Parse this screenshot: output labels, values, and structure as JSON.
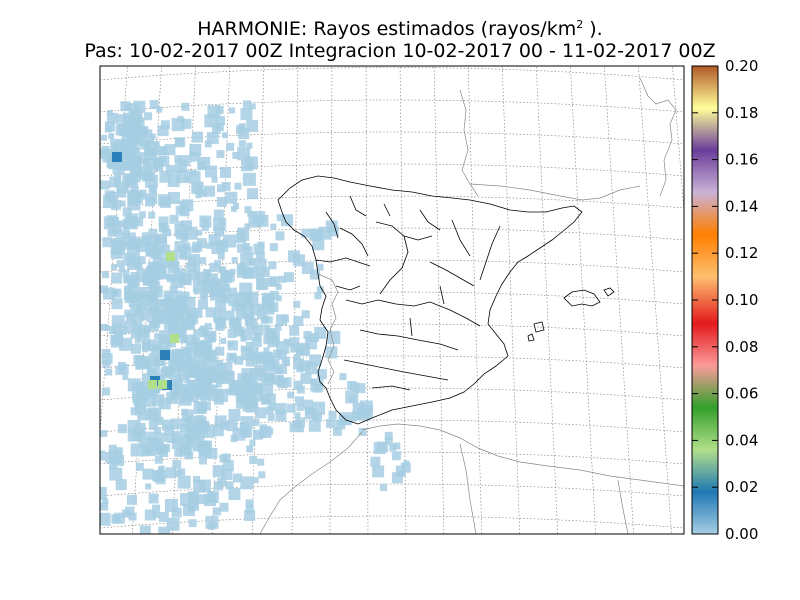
{
  "title": {
    "line1_prefix": "HARMONIE: Rayos estimados  (rayos/km",
    "line1_sup": "2",
    "line1_suffix": " ).",
    "line2": "Pas: 10-02-2017 00Z Integracion 10-02-2017 00 - 11-02-2017 00Z"
  },
  "colorbar": {
    "ticks": [
      "0.00",
      "0.02",
      "0.04",
      "0.06",
      "0.08",
      "0.10",
      "0.12",
      "0.14",
      "0.16",
      "0.18",
      "0.20"
    ],
    "colors": [
      "#a6cee3",
      "#1f78b4",
      "#b2df8a",
      "#33a02c",
      "#fb9a99",
      "#e31a1c",
      "#fdbf6f",
      "#ff7f00",
      "#cab2d6",
      "#6a3d9a",
      "#ffff99",
      "#b15928"
    ]
  },
  "legend_colors": {
    "light_blue": "#a6cee3",
    "mid_blue": "#1f78b4",
    "green": "#b2df8a"
  }
}
